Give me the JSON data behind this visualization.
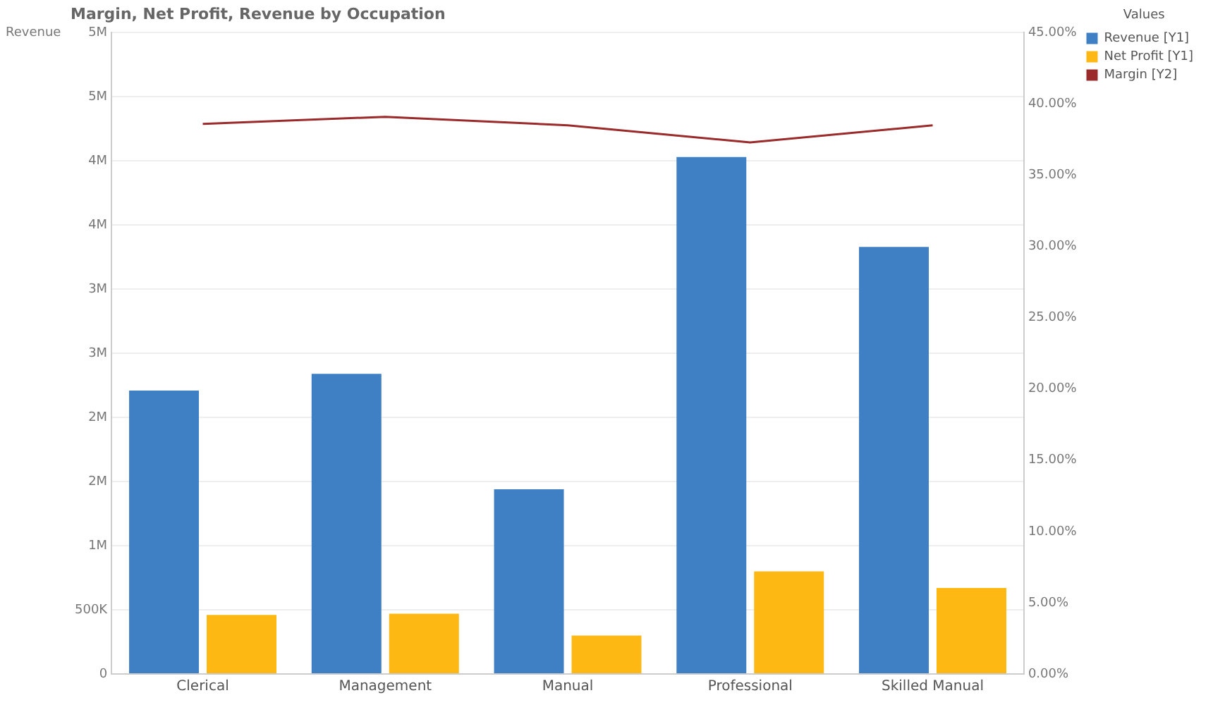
{
  "chart_data": {
    "type": "bar",
    "title": "Margin, Net Profit, Revenue by Occupation",
    "ylabel": "Revenue",
    "legend_title": "Values",
    "categories": [
      "Clerical",
      "Management",
      "Manual",
      "Professional",
      "Skilled Manual"
    ],
    "series": [
      {
        "name": "Revenue [Y1]",
        "color": "#3f7fc4",
        "values": [
          2210000,
          2340000,
          1440000,
          4030000,
          3330000
        ]
      },
      {
        "name": "Net Profit [Y1]",
        "color": "#fdb813",
        "values": [
          460000,
          470000,
          300000,
          800000,
          670000
        ]
      },
      {
        "name": "Margin [Y2]",
        "type": "line",
        "axis": "y2",
        "color": "#9b2a2a",
        "values": [
          38.6,
          39.1,
          38.5,
          37.3,
          38.5
        ]
      }
    ],
    "ylim": [
      0,
      5000000
    ],
    "yticks": [
      0,
      {
        "value": 500000,
        "label": "500K"
      },
      {
        "value": 1000000,
        "label": "1M"
      },
      {
        "value": 1500000,
        "label": "2M"
      },
      {
        "value": 2000000,
        "label": "2M"
      },
      {
        "value": 2500000,
        "label": "3M"
      },
      {
        "value": 3000000,
        "label": "3M"
      },
      {
        "value": 3500000,
        "label": "4M"
      },
      {
        "value": 4000000,
        "label": "4M"
      },
      {
        "value": 4500000,
        "label": "5M"
      },
      {
        "value": 5000000,
        "label": "5M"
      }
    ],
    "y2lim": [
      0,
      45
    ],
    "y2ticks": [
      {
        "value": 0,
        "label": "0.00%"
      },
      {
        "value": 5,
        "label": "5.00%"
      },
      {
        "value": 10,
        "label": "10.00%"
      },
      {
        "value": 15,
        "label": "15.00%"
      },
      {
        "value": 20,
        "label": "20.00%"
      },
      {
        "value": 25,
        "label": "25.00%"
      },
      {
        "value": 30,
        "label": "30.00%"
      },
      {
        "value": 35,
        "label": "35.00%"
      },
      {
        "value": 40,
        "label": "40.00%"
      },
      {
        "value": 45,
        "label": "45.00%"
      }
    ],
    "grid": "y",
    "legend": "top right",
    "marker": "none"
  }
}
